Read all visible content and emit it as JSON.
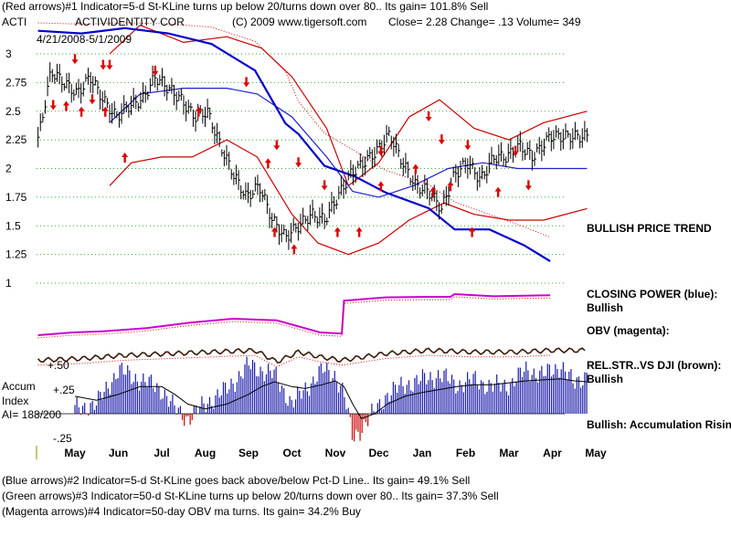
{
  "header": {
    "line1": "(Red arrows)#1 Indicator=5-d St-KLine turns up below 20/turns down over 80.. Its gain= 101.8% Sell",
    "ticker": "ACTI",
    "company": "ACTIVIDENTITY COR",
    "copyright": "(C) 2009 www.tigersoft.com",
    "quote": "Close=  2.28  Change= .13 Volume= 349",
    "date_range": "4/21/2008-5/1/2009"
  },
  "footer": {
    "line1": "(Blue arrows)#2 Indicator=5-d St-KLine goes back above/below Pct-D Line.. Its gain= 49.1% Sell",
    "line2": "(Green arrows)#3 Indicator=50-d St-KLine turns up below 20/turns down over 80.. Its gain= 37.3% Sell",
    "line3": "(Magenta arrows)#4 Indicator=50-day OBV ma turns. Its gain= 34.2% Buy"
  },
  "side_notes": {
    "trend": "BULLISH PRICE TREND",
    "closing_power": "CLOSING POWER (blue):",
    "closing_power_state": "Bullish",
    "obv": "OBV (magenta):",
    "relstr": "REL.STR..VS DJI (brown):",
    "relstr_state": "Bullish",
    "accum_state": "Bullish: Accumulation Rising"
  },
  "accum_panel": {
    "title1": "Accum",
    "title2": "Index",
    "ai_value": "AI= 188/200",
    "ticks": [
      "+.50",
      "+.25",
      "-.25"
    ]
  },
  "colors": {
    "price": "#000000",
    "bands": "#cc0000",
    "ma": "#1f1fcc",
    "closing_power": "#0000cc",
    "obv": "#cc00cc",
    "relstr": "#3a1a08",
    "accum": "#1a1aaa",
    "accum_neg": "#cc0000",
    "grid": "#33aa33",
    "arrow": "#dd0000"
  },
  "chart_data": {
    "type": "line",
    "title": "ACTIVIDENTITY COR",
    "date_range": "4/21/2008-5/1/2009",
    "xlabel": "",
    "ylabel": "",
    "x_ticks": [
      "May",
      "Jun",
      "Jul",
      "Aug",
      "Sep",
      "Oct",
      "Nov",
      "Dec",
      "Jan",
      "Feb",
      "Mar",
      "Apr",
      "May"
    ],
    "y_ticks": [
      3,
      2.75,
      2.5,
      2.25,
      2,
      1.75,
      1.5,
      1.25,
      1
    ],
    "ylim": [
      1,
      3
    ],
    "grid": true,
    "series": [
      {
        "name": "Price close",
        "x_months": [
          0,
          0.3,
          0.6,
          0.9,
          1.2,
          1.5,
          1.8,
          2.1,
          2.4,
          2.7,
          3.0,
          3.3,
          3.6,
          3.9,
          4.2,
          4.5,
          4.8,
          5.1,
          5.4,
          5.7,
          6.0,
          6.3,
          6.6,
          6.9,
          7.2,
          7.5,
          7.8,
          8.1,
          8.4,
          8.7,
          9.0,
          9.3,
          9.6,
          9.9,
          10.2,
          10.5,
          10.8,
          11.1,
          11.4,
          11.8
        ],
        "values": [
          2.25,
          2.85,
          2.75,
          2.65,
          2.8,
          2.6,
          2.45,
          2.55,
          2.6,
          2.8,
          2.7,
          2.6,
          2.45,
          2.5,
          2.2,
          1.95,
          1.75,
          1.85,
          1.55,
          1.4,
          1.5,
          1.6,
          1.55,
          1.75,
          1.95,
          2.05,
          2.15,
          2.3,
          2.05,
          1.85,
          1.8,
          1.65,
          1.95,
          2.05,
          1.9,
          2.1,
          2.1,
          2.2,
          2.1,
          2.28
        ]
      },
      {
        "name": "Band upper",
        "x_months": [
          0.8,
          1.5,
          2.5,
          3.5,
          4.3,
          5.0,
          5.8,
          6.3,
          7.0,
          7.7,
          8.4,
          9.2,
          10.0,
          10.8,
          11.8
        ],
        "values": [
          3.0,
          3.25,
          3.1,
          3.15,
          3.05,
          2.8,
          2.35,
          1.85,
          2.05,
          2.45,
          2.6,
          2.35,
          2.25,
          2.4,
          2.5
        ]
      },
      {
        "name": "Band lower",
        "x_months": [
          0.8,
          1.3,
          2.0,
          2.7,
          3.5,
          4.2,
          5.0,
          5.6,
          6.3,
          7.0,
          7.7,
          8.5,
          9.2,
          10.0,
          10.8,
          11.8
        ],
        "values": [
          1.85,
          2.05,
          2.1,
          2.1,
          2.25,
          2.1,
          1.6,
          1.35,
          1.25,
          1.35,
          1.55,
          1.7,
          1.6,
          1.55,
          1.55,
          1.65
        ]
      },
      {
        "name": "Moving average",
        "x_months": [
          0.8,
          1.5,
          2.5,
          3.5,
          4.2,
          5.0,
          5.8,
          6.4,
          7.0,
          7.8,
          8.6,
          9.4,
          10.2,
          11.0,
          11.8
        ],
        "values": [
          2.4,
          2.65,
          2.7,
          2.7,
          2.65,
          2.45,
          2.1,
          1.8,
          1.75,
          1.85,
          2.0,
          2.05,
          2.0,
          2.0,
          2.0
        ]
      }
    ],
    "arrows": [
      {
        "x_month": 0.35,
        "y": 2.55,
        "dir": "down"
      },
      {
        "x_month": 0.65,
        "y": 2.55,
        "dir": "up"
      },
      {
        "x_month": 0.85,
        "y": 2.95,
        "dir": "down"
      },
      {
        "x_month": 1.0,
        "y": 2.5,
        "dir": "up"
      },
      {
        "x_month": 1.5,
        "y": 2.9,
        "dir": "down"
      },
      {
        "x_month": 1.65,
        "y": 2.9,
        "dir": "down"
      },
      {
        "x_month": 1.55,
        "y": 2.5,
        "dir": "up"
      },
      {
        "x_month": 1.25,
        "y": 2.6,
        "dir": "down"
      },
      {
        "x_month": 2.0,
        "y": 2.1,
        "dir": "up"
      },
      {
        "x_month": 2.7,
        "y": 2.85,
        "dir": "down"
      },
      {
        "x_month": 3.7,
        "y": 2.5,
        "dir": "up"
      },
      {
        "x_month": 4.8,
        "y": 2.75,
        "dir": "down"
      },
      {
        "x_month": 5.3,
        "y": 2.05,
        "dir": "up"
      },
      {
        "x_month": 5.5,
        "y": 2.2,
        "dir": "down"
      },
      {
        "x_month": 5.45,
        "y": 1.45,
        "dir": "up"
      },
      {
        "x_month": 6.0,
        "y": 2.05,
        "dir": "down"
      },
      {
        "x_month": 5.9,
        "y": 1.3,
        "dir": "up"
      },
      {
        "x_month": 6.6,
        "y": 1.85,
        "dir": "down"
      },
      {
        "x_month": 6.9,
        "y": 1.45,
        "dir": "up"
      },
      {
        "x_month": 7.4,
        "y": 1.45,
        "dir": "up"
      },
      {
        "x_month": 7.9,
        "y": 2.15,
        "dir": "down"
      },
      {
        "x_month": 7.9,
        "y": 1.85,
        "dir": "up"
      },
      {
        "x_month": 8.7,
        "y": 2.0,
        "dir": "up"
      },
      {
        "x_month": 9.0,
        "y": 2.45,
        "dir": "down"
      },
      {
        "x_month": 9.3,
        "y": 2.25,
        "dir": "down"
      },
      {
        "x_month": 9.1,
        "y": 1.8,
        "dir": "up"
      },
      {
        "x_month": 9.5,
        "y": 1.85,
        "dir": "up"
      },
      {
        "x_month": 9.9,
        "y": 2.2,
        "dir": "down"
      },
      {
        "x_month": 10.0,
        "y": 1.45,
        "dir": "up"
      },
      {
        "x_month": 10.6,
        "y": 1.8,
        "dir": "up"
      },
      {
        "x_month": 11.0,
        "y": 2.15,
        "dir": "down"
      },
      {
        "x_month": 11.3,
        "y": 1.85,
        "dir": "down"
      }
    ],
    "closing_power": {
      "x_months": [
        0,
        1.0,
        2.0,
        3.0,
        4.0,
        5.0,
        5.7,
        6.0,
        6.6,
        7.3,
        8.0,
        9.0,
        9.6,
        10.4,
        11.2,
        11.8
      ],
      "values": [
        0.97,
        0.96,
        0.98,
        0.96,
        0.92,
        0.82,
        0.62,
        0.58,
        0.46,
        0.42,
        0.36,
        0.3,
        0.22,
        0.22,
        0.16,
        0.1
      ]
    },
    "obv": {
      "x_months": [
        0,
        0.8,
        1.5,
        2.5,
        3.5,
        4.5,
        5.5,
        6.5,
        7.0,
        7.05,
        8.0,
        9.0,
        9.5,
        9.6,
        10.5,
        11.8
      ],
      "values": [
        0.75,
        0.7,
        0.68,
        0.62,
        0.52,
        0.45,
        0.48,
        0.7,
        0.72,
        0.12,
        0.06,
        0.05,
        0.05,
        0.0,
        0.04,
        0.02
      ]
    },
    "relstr": {
      "x_months": [
        0,
        1.0,
        2.0,
        3.0,
        4.0,
        5.0,
        5.5,
        6.0,
        6.5,
        7.0,
        8.0,
        9.0,
        10.0,
        11.0,
        11.8
      ],
      "values": [
        0.8,
        0.7,
        0.5,
        0.4,
        0.3,
        0.2,
        0.9,
        0.3,
        0.6,
        0.8,
        0.4,
        0.2,
        0.3,
        0.3,
        0.2
      ]
    },
    "accum_index": {
      "ylim": [
        -0.32,
        0.6
      ],
      "x_months": [
        0,
        0.5,
        1.0,
        1.5,
        2.0,
        2.3,
        2.6,
        3.0,
        3.5,
        4.0,
        4.3,
        4.6,
        5.0,
        5.3,
        5.7,
        6.0,
        6.2,
        6.4,
        6.6,
        6.9,
        7.2,
        7.6,
        8.0,
        8.4,
        8.8,
        9.2,
        9.6,
        10.0,
        10.4,
        10.8,
        11.2,
        11.5,
        11.8
      ],
      "values": [
        0.05,
        0.1,
        0.45,
        0.35,
        0.25,
        0.05,
        -0.05,
        0.1,
        0.25,
        0.5,
        0.45,
        0.4,
        0.1,
        0.25,
        0.45,
        0.4,
        0.2,
        -0.25,
        -0.15,
        0.02,
        0.2,
        0.3,
        0.35,
        0.4,
        0.3,
        0.35,
        0.28,
        0.3,
        0.45,
        0.4,
        0.5,
        0.3,
        0.42
      ],
      "ma": [
        0.18,
        0.14,
        0.2,
        0.28,
        0.28,
        0.2,
        0.1,
        0.05,
        0.1,
        0.2,
        0.28,
        0.33,
        0.28,
        0.26,
        0.3,
        0.34,
        0.28,
        0.1,
        -0.05,
        0.0,
        0.1,
        0.18,
        0.22,
        0.25,
        0.28,
        0.3,
        0.3,
        0.32,
        0.34,
        0.35,
        0.36,
        0.34,
        0.33
      ]
    }
  }
}
